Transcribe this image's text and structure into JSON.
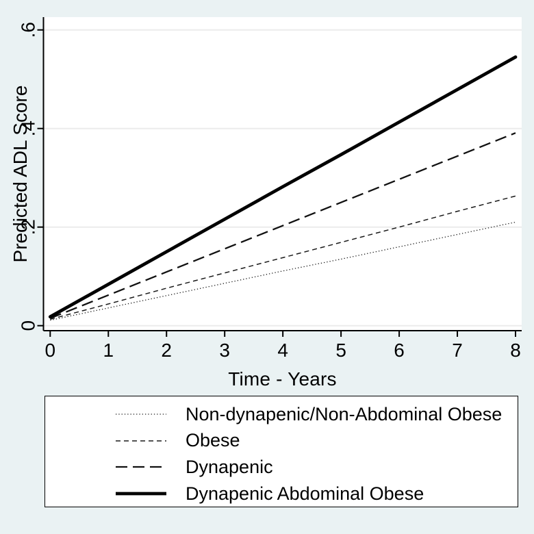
{
  "figure": {
    "background": "#eaf2f3",
    "plot_background": "#ffffff",
    "axis_color": "#000000",
    "grid_color": "#ececec",
    "text_color": "#000000",
    "legend_border_color": "#000000"
  },
  "chart_data": {
    "type": "line",
    "title": "",
    "xlabel": "Time - Years",
    "ylabel": "Predicted ADL Score",
    "xlim": [
      0,
      8
    ],
    "ylim": [
      0,
      0.6
    ],
    "x": [
      0,
      1,
      2,
      3,
      4,
      5,
      6,
      7,
      8
    ],
    "x_ticks": [
      "0",
      "1",
      "2",
      "3",
      "4",
      "5",
      "6",
      "7",
      "8"
    ],
    "x_tick_values": [
      0,
      1,
      2,
      3,
      4,
      5,
      6,
      7,
      8
    ],
    "y_ticks": [
      "0",
      ".2",
      ".4",
      ".6"
    ],
    "y_tick_values": [
      0,
      0.2,
      0.4,
      0.6
    ],
    "grid": "horizontal",
    "legend_position": "bottom",
    "series": [
      {
        "name": "Non-dynapenic/Non-Abdominal Obese",
        "line_style": "dotted",
        "color": "#1a1a1a",
        "width": 1.3,
        "dash": "1.3 3",
        "values": [
          0.011,
          0.036,
          0.061,
          0.086,
          0.111,
          0.135,
          0.16,
          0.185,
          0.21
        ]
      },
      {
        "name": "Obese",
        "line_style": "short-dash",
        "color": "#1a1a1a",
        "width": 1.5,
        "dash": "7 5",
        "values": [
          0.013,
          0.044,
          0.076,
          0.107,
          0.138,
          0.169,
          0.2,
          0.232,
          0.263
        ]
      },
      {
        "name": "Dynapenic",
        "line_style": "long-dash",
        "color": "#111111",
        "width": 2.3,
        "dash": "17 8",
        "values": [
          0.015,
          0.062,
          0.109,
          0.156,
          0.203,
          0.25,
          0.297,
          0.344,
          0.391
        ]
      },
      {
        "name": "Dynapenic Abdominal Obese",
        "line_style": "solid",
        "color": "#000000",
        "width": 4.8,
        "dash": "",
        "values": [
          0.018,
          0.084,
          0.15,
          0.216,
          0.282,
          0.347,
          0.413,
          0.479,
          0.545
        ]
      }
    ]
  }
}
